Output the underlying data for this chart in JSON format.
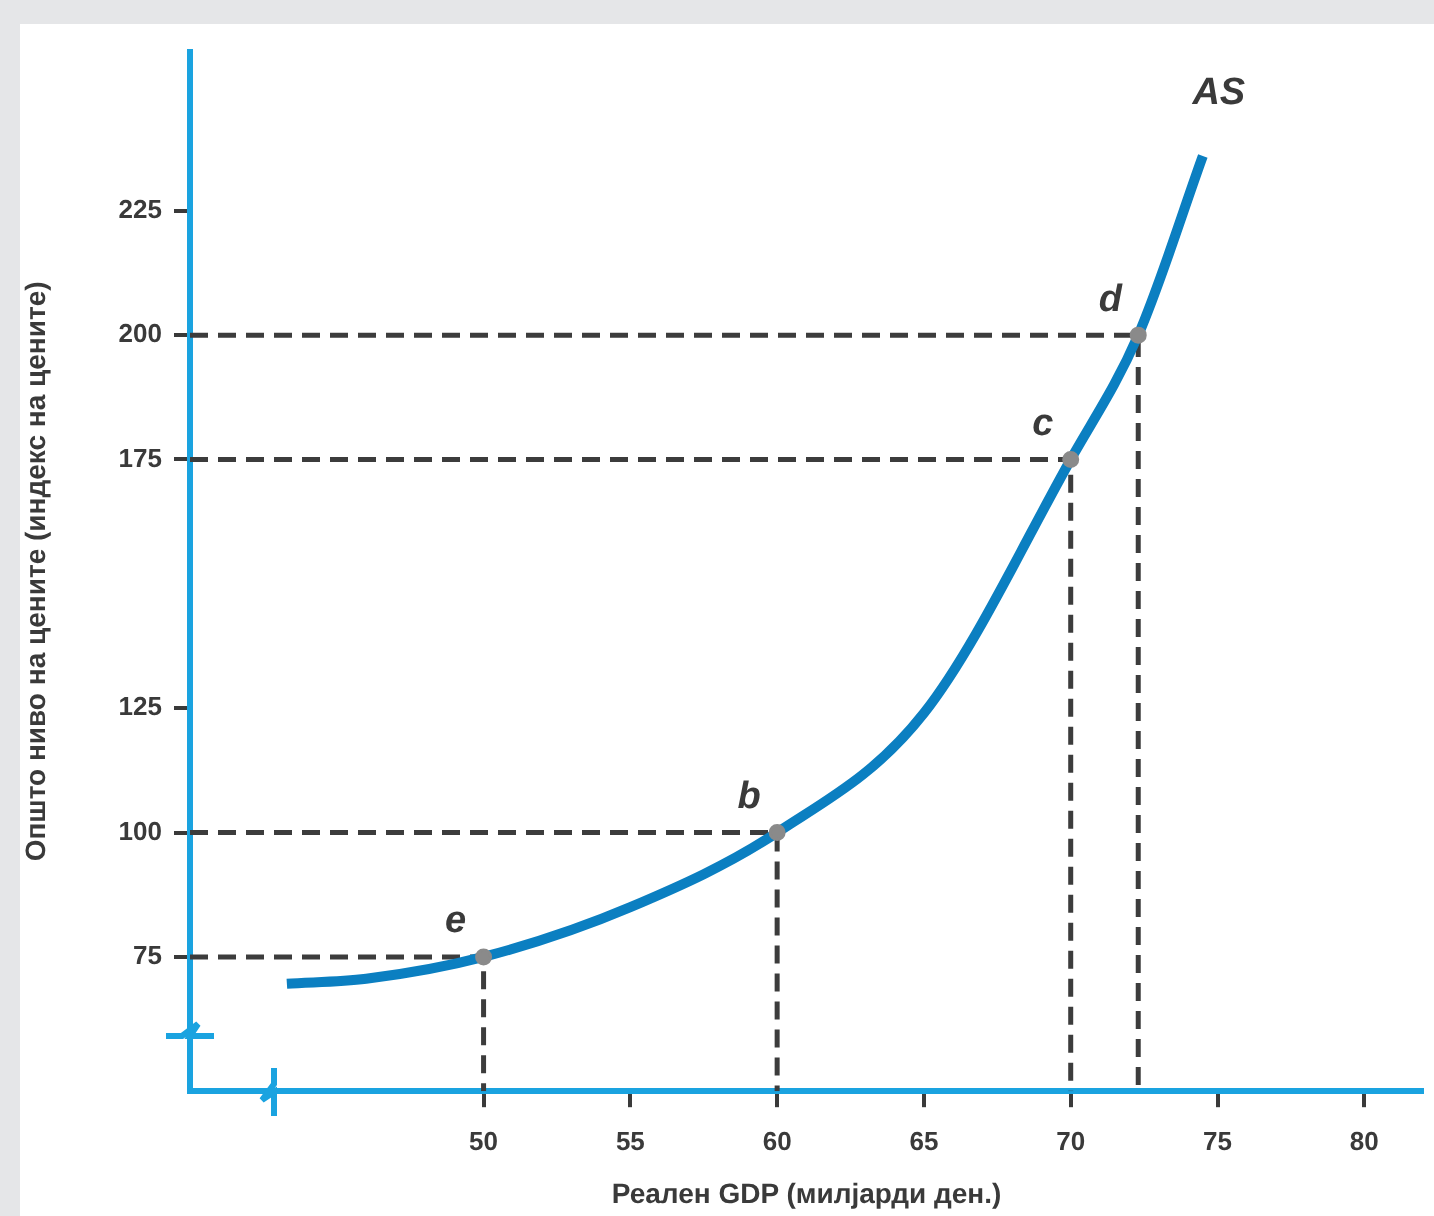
{
  "chart_data": {
    "type": "line",
    "xlabel": "Реален GDP (милјарди ден.)",
    "ylabel": "Општо ниво на цените (индекс на цените)",
    "xlim": [
      40,
      82
    ],
    "xticks": [
      50,
      55,
      60,
      65,
      70,
      75,
      80
    ],
    "ylim": [
      48,
      257
    ],
    "yticks": [
      75,
      100,
      125,
      175,
      200,
      225
    ],
    "grid": false,
    "legend": false,
    "series": [
      {
        "name": "AS",
        "color": "#0b7fc1",
        "x": [
          43.3,
          46,
          50,
          55,
          60,
          65,
          70,
          72.3,
          74.5
        ],
        "values": [
          69.6,
          70.6,
          75,
          85,
          100,
          124,
          175,
          200,
          236
        ]
      },
      {
        "type": "line",
        "color": "#3c3c3c",
        "line_style": "dashed",
        "x": [
          40,
          50,
          50
        ],
        "values": [
          75,
          75,
          48
        ]
      },
      {
        "type": "line",
        "color": "#3c3c3c",
        "line_style": "dashed",
        "x": [
          40,
          60,
          60
        ],
        "values": [
          100,
          100,
          48
        ]
      },
      {
        "type": "line",
        "color": "#3c3c3c",
        "line_style": "dashed",
        "x": [
          40,
          70,
          70
        ],
        "values": [
          175,
          175,
          48
        ]
      },
      {
        "type": "line",
        "color": "#3c3c3c",
        "line_style": "dashed",
        "x": [
          40,
          72.3,
          72.3
        ],
        "values": [
          200,
          200,
          48
        ]
      },
      {
        "type": "scatter",
        "color": "#8a8a8a",
        "marker": "circle",
        "x": [
          50,
          60,
          70,
          72.3
        ],
        "values": [
          75,
          100,
          175,
          200
        ]
      }
    ],
    "annotations": [
      {
        "text": "e",
        "x": 50,
        "y": 75
      },
      {
        "text": "b",
        "x": 60,
        "y": 100
      },
      {
        "text": "c",
        "x": 70,
        "y": 175
      },
      {
        "text": "d",
        "x": 72.3,
        "y": 200
      }
    ]
  }
}
